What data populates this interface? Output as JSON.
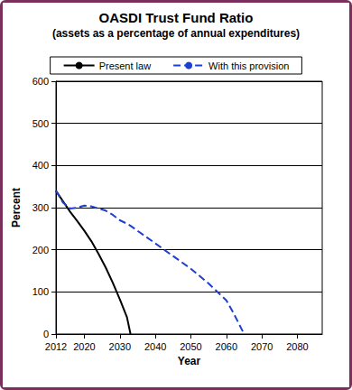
{
  "chart_data": {
    "type": "line",
    "title": "OASDI Trust Fund Ratio",
    "subtitle": "(assets as a percentage of annual expenditures)",
    "x_label": "Year",
    "y_label": "Percent",
    "x": [
      2012,
      2014,
      2016,
      2018,
      2020,
      2022,
      2024,
      2026,
      2028,
      2030,
      2032,
      2033,
      2035,
      2040,
      2045,
      2050,
      2055,
      2060,
      2062,
      2065
    ],
    "series": [
      {
        "name": "Present law",
        "color": "#000000",
        "line_style": "solid",
        "marker": "none",
        "values": [
          340,
          315,
          290,
          268,
          245,
          220,
          190,
          158,
          122,
          82,
          40,
          0,
          null,
          null,
          null,
          null,
          null,
          null,
          null,
          null
        ]
      },
      {
        "name": "With this provision",
        "color": "#1f3fd0",
        "line_style": "dashed",
        "marker": "none",
        "values": [
          340,
          312,
          298,
          300,
          305,
          303,
          298,
          293,
          283,
          270,
          262,
          257,
          245,
          215,
          185,
          155,
          120,
          80,
          50,
          0
        ]
      }
    ],
    "xlim": [
      2012,
      2087
    ],
    "xticks": [
      2012,
      2020,
      2030,
      2040,
      2050,
      2060,
      2070,
      2080
    ],
    "ylim": [
      0,
      600
    ],
    "yticks": [
      0,
      100,
      200,
      300,
      400,
      500,
      600
    ],
    "grid": true,
    "legend": "top"
  }
}
